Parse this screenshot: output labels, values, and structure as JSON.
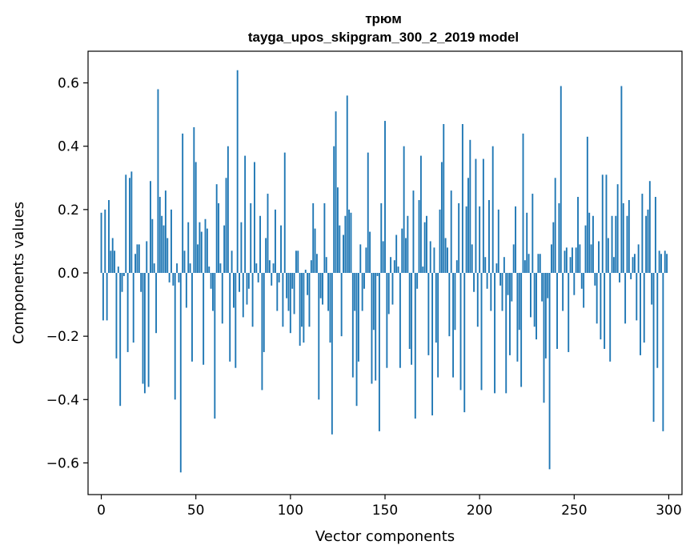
{
  "chart_data": {
    "type": "bar",
    "title": "трюм",
    "subtitle": "tayga_upos_skipgram_300_2_2019 model",
    "xlabel": "Vector components",
    "ylabel": "Components values",
    "xlim": [
      -7,
      307
    ],
    "ylim": [
      -0.7,
      0.7
    ],
    "xticks": [
      0,
      50,
      100,
      150,
      200,
      250,
      300
    ],
    "xtick_labels": [
      "0",
      "50",
      "100",
      "150",
      "200",
      "250",
      "300"
    ],
    "yticks": [
      -0.6,
      -0.4,
      -0.2,
      0.0,
      0.2,
      0.4,
      0.6
    ],
    "ytick_labels": [
      "−0.6",
      "−0.4",
      "−0.2",
      "0.0",
      "0.2",
      "0.4",
      "0.6"
    ],
    "bar_color": "#1f77b4",
    "grid": false,
    "series": [
      {
        "values": [
          0.19,
          -0.15,
          0.2,
          -0.15,
          0.23,
          0.07,
          0.11,
          0.07,
          -0.27,
          0.02,
          -0.42,
          -0.06,
          -0.01,
          0.31,
          -0.25,
          0.3,
          0.32,
          -0.22,
          0.06,
          0.09,
          0.09,
          -0.06,
          -0.35,
          -0.38,
          0.1,
          -0.36,
          0.29,
          0.17,
          0.03,
          -0.19,
          0.58,
          0.24,
          0.18,
          0.15,
          0.26,
          0.11,
          -0.03,
          0.2,
          -0.04,
          -0.4,
          0.03,
          -0.03,
          -0.63,
          0.44,
          0.07,
          -0.11,
          0.16,
          0.03,
          -0.28,
          0.46,
          0.35,
          0.09,
          0.16,
          0.13,
          -0.29,
          0.17,
          0.14,
          0.02,
          -0.05,
          -0.12,
          -0.46,
          0.28,
          0.22,
          0.03,
          -0.16,
          0.15,
          0.3,
          0.4,
          -0.28,
          0.07,
          -0.11,
          -0.3,
          0.64,
          -0.06,
          0.16,
          -0.14,
          0.37,
          -0.1,
          -0.05,
          0.22,
          -0.17,
          0.35,
          0.03,
          -0.03,
          0.18,
          -0.37,
          -0.25,
          0.11,
          0.25,
          0.04,
          -0.04,
          0.03,
          0.2,
          -0.12,
          -0.03,
          0.15,
          -0.17,
          0.38,
          -0.08,
          -0.12,
          -0.19,
          -0.05,
          -0.13,
          0.07,
          0.07,
          -0.23,
          -0.17,
          -0.22,
          0.01,
          -0.07,
          -0.17,
          0.04,
          0.22,
          0.14,
          0.06,
          -0.4,
          -0.08,
          -0.1,
          0.22,
          0.05,
          -0.12,
          -0.22,
          -0.51,
          0.4,
          0.51,
          0.27,
          0.15,
          -0.2,
          0.12,
          0.18,
          0.56,
          0.2,
          0.19,
          -0.33,
          -0.12,
          -0.42,
          -0.28,
          0.09,
          -0.12,
          -0.05,
          0.08,
          0.38,
          0.13,
          -0.35,
          -0.18,
          -0.34,
          -0.01,
          -0.5,
          0.22,
          0.1,
          0.48,
          -0.3,
          -0.13,
          0.05,
          -0.1,
          0.04,
          0.12,
          0.02,
          -0.3,
          0.14,
          0.4,
          0.11,
          0.18,
          -0.24,
          -0.29,
          0.26,
          -0.46,
          -0.05,
          0.23,
          0.37,
          0.02,
          0.16,
          0.18,
          -0.26,
          0.1,
          -0.45,
          0.08,
          -0.22,
          -0.33,
          0.2,
          0.35,
          0.47,
          0.11,
          0.08,
          -0.2,
          0.26,
          -0.33,
          -0.18,
          0.04,
          0.22,
          -0.37,
          0.47,
          -0.44,
          0.21,
          0.3,
          0.42,
          0.09,
          -0.06,
          0.36,
          -0.17,
          0.21,
          -0.37,
          0.36,
          0.05,
          -0.05,
          0.23,
          -0.12,
          0.4,
          -0.38,
          0.03,
          0.2,
          -0.04,
          -0.12,
          0.05,
          -0.38,
          -0.07,
          -0.26,
          -0.09,
          0.09,
          0.21,
          -0.28,
          -0.18,
          -0.36,
          0.44,
          0.04,
          0.19,
          0.06,
          -0.14,
          0.25,
          -0.17,
          -0.21,
          0.06,
          0.06,
          -0.09,
          -0.41,
          -0.27,
          -0.08,
          -0.62,
          0.09,
          0.16,
          0.3,
          -0.24,
          0.22,
          0.59,
          -0.12,
          0.07,
          0.08,
          -0.25,
          0.05,
          0.08,
          -0.07,
          0.08,
          0.24,
          0.09,
          -0.05,
          -0.11,
          0.15,
          0.43,
          0.19,
          0.09,
          0.18,
          -0.04,
          -0.16,
          0.1,
          -0.21,
          0.31,
          -0.24,
          0.31,
          0.11,
          -0.28,
          0.18,
          0.05,
          0.18,
          0.28,
          -0.03,
          0.59,
          0.22,
          -0.16,
          0.18,
          0.23,
          -0.02,
          0.05,
          0.06,
          -0.15,
          0.09,
          -0.26,
          0.25,
          -0.22,
          0.18,
          0.2,
          0.29,
          -0.1,
          -0.47,
          0.24,
          -0.3,
          0.07,
          0.06,
          -0.5,
          0.07,
          0.06
        ]
      }
    ]
  }
}
